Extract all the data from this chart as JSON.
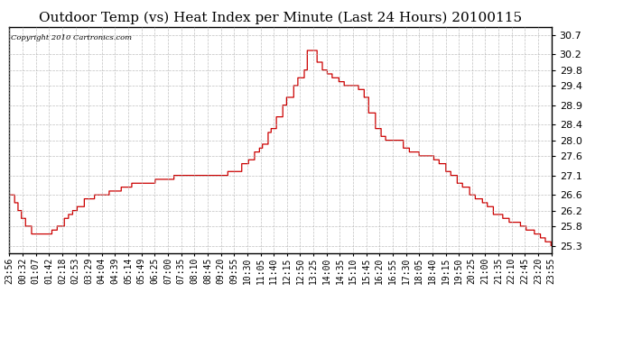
{
  "title": "Outdoor Temp (vs) Heat Index per Minute (Last 24 Hours) 20100115",
  "copyright": "Copyright 2010 Cartronics.com",
  "line_color": "#cc0000",
  "background_color": "#ffffff",
  "grid_color": "#b0b0b0",
  "yticks": [
    25.3,
    25.8,
    26.2,
    26.6,
    27.1,
    27.6,
    28.0,
    28.4,
    28.9,
    29.4,
    29.8,
    30.2,
    30.7
  ],
  "xtick_labels": [
    "23:56",
    "00:32",
    "01:07",
    "01:42",
    "02:18",
    "02:53",
    "03:29",
    "04:04",
    "04:39",
    "05:14",
    "05:49",
    "06:25",
    "07:00",
    "07:35",
    "08:10",
    "08:45",
    "09:20",
    "09:55",
    "10:30",
    "11:05",
    "11:40",
    "12:15",
    "12:50",
    "13:25",
    "14:00",
    "14:35",
    "15:10",
    "15:45",
    "16:20",
    "16:55",
    "17:30",
    "18:05",
    "18:40",
    "19:15",
    "19:50",
    "20:25",
    "21:00",
    "21:35",
    "22:10",
    "22:45",
    "23:20",
    "23:55"
  ],
  "ylim": [
    25.1,
    30.9
  ],
  "title_fontsize": 11,
  "tick_fontsize": 7,
  "ytick_fontsize": 8,
  "figsize": [
    6.9,
    3.75
  ],
  "dpi": 100
}
